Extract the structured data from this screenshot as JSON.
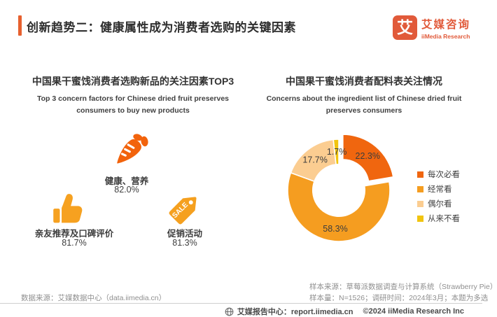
{
  "header": {
    "title": "创新趋势二：健康属性成为消费者选购的关键因素",
    "logo": {
      "mark": "艾",
      "name_cn": "艾媒咨询",
      "name_en": "iiMedia Research"
    }
  },
  "left_panel": {
    "title": "中国果干蜜饯消费者选购新品的关注因素TOP3",
    "subtitle_line1": "Top 3 concern factors for Chinese dried fruit preserves",
    "subtitle_line2": "consumers to buy new products",
    "items": [
      {
        "icon": "carrot-icon",
        "label": "健康、营养",
        "value": "82.0%"
      },
      {
        "icon": "thumbs-up-icon",
        "label": "亲友推荐及口碑评价",
        "value": "81.7%"
      },
      {
        "icon": "sale-tag-icon",
        "label": "促销活动",
        "value": "81.3%",
        "tag_text": "SALE"
      }
    ]
  },
  "right_panel": {
    "title": "中国果干蜜饯消费者配料表关注情况",
    "subtitle_line1": "Concerns about the ingredient list of Chinese dried fruit",
    "subtitle_line2": "preserves consumers"
  },
  "chart_data": {
    "type": "pie",
    "subtype": "donut",
    "title": "中国果干蜜饯消费者配料表关注情况",
    "categories": [
      "每次必看",
      "经常看",
      "偶尔看",
      "从来不看"
    ],
    "values": [
      22.3,
      58.3,
      17.7,
      1.7
    ],
    "labels": [
      "22.3%",
      "58.3%",
      "17.7%",
      "1.7%"
    ],
    "colors": [
      "#f0660f",
      "#f59d20",
      "#fbcd91",
      "#f1c40f"
    ],
    "exploded_index": 0,
    "start_angle_deg": 0,
    "direction": "clockwise",
    "inner_radius_ratio": 0.51,
    "legend_position": "right"
  },
  "footnotes": {
    "data_source": "数据来源：艾媒数据中心（data.iimedia.cn）",
    "sample_source": "样本来源：草莓派数据调查与计算系统（Strawberry Pie）",
    "sample_info": "样本量：N=1526；调研时间：2024年3月；本题为多选"
  },
  "footer": {
    "report_center": "艾媒报告中心：report.iimedia.cn",
    "copyright": "©2024  iiMedia Research Inc"
  },
  "colors": {
    "accent": "#e7602e",
    "logo": "#e15a3a",
    "carrot": "#f2630c",
    "thumb": "#f6a120",
    "tag": "#f5a01f",
    "label_text": "#3d3d3d"
  }
}
